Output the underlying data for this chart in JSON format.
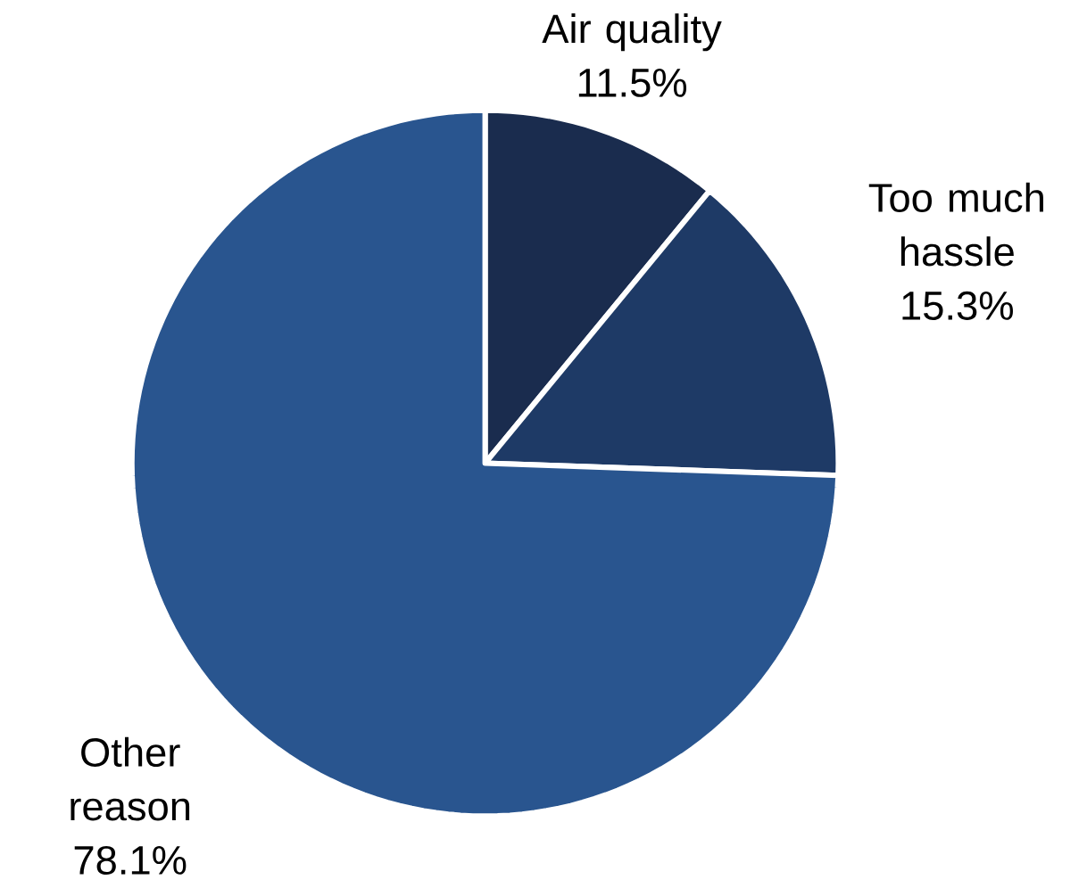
{
  "chart_data": {
    "type": "pie",
    "categories": [
      "Air quality",
      "Too much hassle",
      "Other reason"
    ],
    "values": [
      11.5,
      15.3,
      78.1
    ],
    "value_labels": [
      "11.5%",
      "15.3%",
      "78.1%"
    ],
    "colors": [
      "#1a2c4e",
      "#1e3a66",
      "#29558f"
    ]
  }
}
